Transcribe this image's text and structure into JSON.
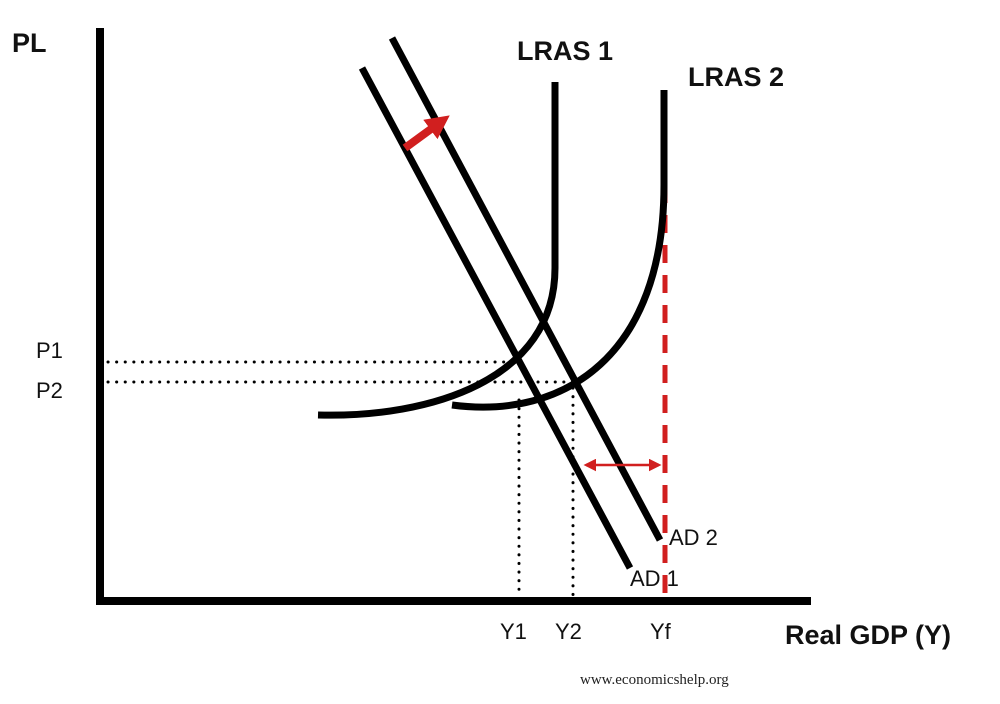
{
  "axes": {
    "y_label": "PL",
    "x_label": "Real GDP (Y)"
  },
  "curves": {
    "lras1": "LRAS 1",
    "lras2": "LRAS 2",
    "ad1": "AD 1",
    "ad2": "AD 2"
  },
  "price_levels": [
    "P1",
    "P2"
  ],
  "output_levels": [
    "Y1",
    "Y2",
    "Yf"
  ],
  "footer": "www.economicshelp.org"
}
